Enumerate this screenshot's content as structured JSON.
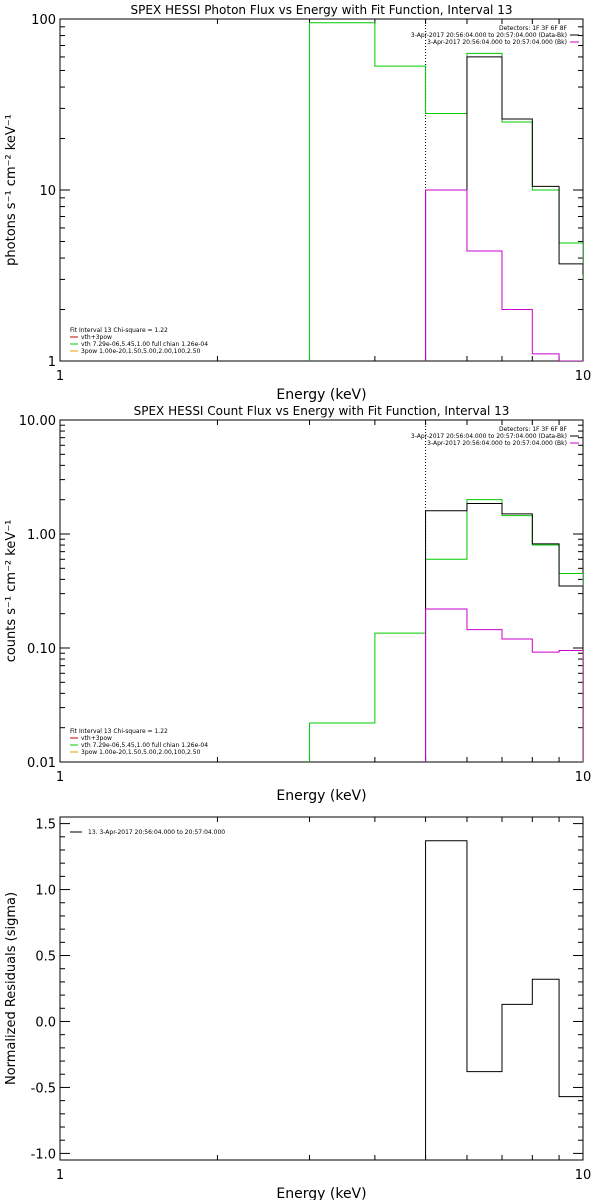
{
  "chart_data": [
    {
      "type": "line",
      "title": "SPEX HESSI Photon Flux vs Energy with Fit Function, Interval 13",
      "xlabel": "Energy (keV)",
      "ylabel": "photons s⁻¹ cm⁻² keV⁻¹",
      "xscale": "log",
      "yscale": "log",
      "xlim": [
        1,
        10
      ],
      "ylim": [
        1,
        100
      ],
      "xticks": [
        {
          "v": 1,
          "label": "1"
        },
        {
          "v": 10,
          "label": "10"
        }
      ],
      "yticks": [
        {
          "v": 1,
          "label": "1"
        },
        {
          "v": 10,
          "label": "10"
        },
        {
          "v": 100,
          "label": "100"
        }
      ],
      "grid": false,
      "fit_line_x": 5.0,
      "legend_top": {
        "position": "top-right",
        "lines": [
          {
            "text": "Detectors: 1F 3F 6F 8F",
            "color": ""
          },
          {
            "text": "3-Apr-2017 20:56:04.000 to 20:57:04.000 (Data-Bk)",
            "color": "#000000"
          },
          {
            "text": "3-Apr-2017 20:56:04.000 to 20:57:04.000 (Bk)",
            "color": "#cc00cc"
          }
        ]
      },
      "legend_bottom": {
        "position": "bottom-left",
        "lines": [
          {
            "text": "Fit Interval 13   Chi-square = 1.22",
            "color": ""
          },
          {
            "text": "vth+3pow",
            "color": "#cc0000"
          },
          {
            "text": "vth 7.29e-06,5.45,1.00  full chian 1.26e-04",
            "color": "#00cc00"
          },
          {
            "text": "3pow 1.00e-20,1.50,5.00,2.00,100,2.50",
            "color": "#e0a000"
          }
        ]
      },
      "series": [
        {
          "color": "#00cc00",
          "x": [
            3.0,
            4.0,
            5.0,
            6.0,
            7.0,
            8.0,
            9.0,
            10.0
          ],
          "y": [
            0.5,
            95,
            53,
            28,
            63,
            25,
            10,
            4.9
          ],
          "y_last": 3.0
        },
        {
          "color": "#000000",
          "x": [
            5.0,
            6.0,
            7.0,
            8.0,
            9.0,
            10.0
          ],
          "y": [
            0.5,
            10,
            60,
            26,
            10.5,
            3.7
          ],
          "y_last": 3.2
        },
        {
          "color": "#cc00cc",
          "x": [
            5.0,
            6.0,
            7.0,
            8.0,
            9.0,
            10.0
          ],
          "y": [
            0.5,
            10,
            4.4,
            2.0,
            1.1,
            1.0
          ],
          "y_last": 0.5
        }
      ]
    },
    {
      "type": "line",
      "title": "SPEX HESSI Count Flux vs Energy with Fit Function, Interval 13",
      "xlabel": "Energy (keV)",
      "ylabel": "counts s⁻¹ cm⁻² keV⁻¹",
      "xscale": "log",
      "yscale": "log",
      "xlim": [
        1,
        10
      ],
      "ylim": [
        0.01,
        10
      ],
      "xticks": [
        {
          "v": 1,
          "label": "1"
        },
        {
          "v": 10,
          "label": "10"
        }
      ],
      "yticks": [
        {
          "v": 0.01,
          "label": "0.01"
        },
        {
          "v": 0.1,
          "label": "0.10"
        },
        {
          "v": 1,
          "label": "1.00"
        },
        {
          "v": 10,
          "label": "10.00"
        }
      ],
      "grid": false,
      "fit_line_x": 5.0,
      "legend_top": {
        "position": "top-right",
        "lines": [
          {
            "text": "Detectors: 1F 3F 6F 8F",
            "color": ""
          },
          {
            "text": "3-Apr-2017 20:56:04.000 to 20:57:04.000 (Data-Bk)",
            "color": "#000000"
          },
          {
            "text": "3-Apr-2017 20:56:04.000 to 20:57:04.000 (Bk)",
            "color": "#cc00cc"
          }
        ]
      },
      "legend_bottom": {
        "position": "bottom-left",
        "lines": [
          {
            "text": "Fit Interval 13   Chi-square = 1.22",
            "color": ""
          },
          {
            "text": "vth+3pow",
            "color": "#cc0000"
          },
          {
            "text": "vth 7.29e-06,5.45,1.00  full chian 1.26e-04",
            "color": "#00cc00"
          },
          {
            "text": "3pow 1.00e-20,1.50,5.00,2.00,100,2.50",
            "color": "#e0a000"
          }
        ]
      },
      "series": [
        {
          "color": "#00cc00",
          "x": [
            3.0,
            4.0,
            5.0,
            6.0,
            7.0,
            8.0,
            9.0,
            10.0
          ],
          "y": [
            0.005,
            0.022,
            0.135,
            0.6,
            2.0,
            1.45,
            0.8,
            0.45
          ],
          "y_last": 0.3
        },
        {
          "color": "#000000",
          "x": [
            5.0,
            6.0,
            7.0,
            8.0,
            9.0,
            10.0
          ],
          "y": [
            0.005,
            1.6,
            1.85,
            1.5,
            0.82,
            0.35
          ],
          "y_last": 0.3
        },
        {
          "color": "#cc00cc",
          "x": [
            5.0,
            6.0,
            7.0,
            8.0,
            9.0,
            10.0
          ],
          "y": [
            0.005,
            0.22,
            0.145,
            0.12,
            0.092,
            0.095
          ],
          "y_last": 0.005
        }
      ]
    },
    {
      "type": "line",
      "title": "",
      "xlabel": "Energy (keV)",
      "ylabel": "Normalized Residuals (sigma)",
      "xscale": "log",
      "yscale": "linear",
      "xlim": [
        1,
        10
      ],
      "ylim": [
        -1.05,
        1.55
      ],
      "xticks": [
        {
          "v": 1,
          "label": "1"
        },
        {
          "v": 10,
          "label": "10"
        }
      ],
      "yticks": [
        {
          "v": -1.0,
          "label": "-1.0"
        },
        {
          "v": -0.5,
          "label": "-0.5"
        },
        {
          "v": 0.0,
          "label": "0.0"
        },
        {
          "v": 0.5,
          "label": "0.5"
        },
        {
          "v": 1.0,
          "label": "1.0"
        },
        {
          "v": 1.5,
          "label": "1.5"
        }
      ],
      "grid": false,
      "legend_top": {
        "position": "top-left",
        "lines": [
          {
            "text": "13.  3-Apr-2017 20:56:04.000 to 20:57:04.000",
            "color": "#000000"
          }
        ]
      },
      "series": [
        {
          "color": "#000000",
          "x": [
            5.0,
            6.0,
            7.0,
            8.0,
            9.0,
            10.0
          ],
          "y": [
            -1.05,
            1.37,
            -0.38,
            0.13,
            0.32,
            -0.57
          ],
          "y_last": -0.57
        }
      ]
    }
  ]
}
